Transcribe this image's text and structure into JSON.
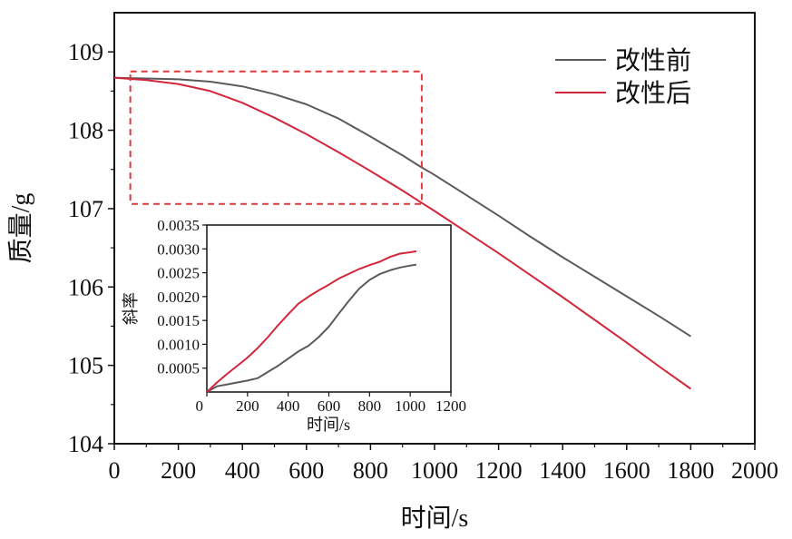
{
  "chart_data": [
    {
      "type": "line",
      "xlabel": "时间/s",
      "ylabel": "质量/g",
      "xlim": [
        0,
        2000
      ],
      "ylim": [
        104,
        109.5
      ],
      "xticks": [
        "0",
        "200",
        "400",
        "600",
        "800",
        "1000",
        "1200",
        "1400",
        "1600",
        "1800",
        "2000"
      ],
      "yticks": [
        "104",
        "105",
        "106",
        "107",
        "108",
        "109"
      ],
      "grid": false,
      "legend_position": "top-right",
      "highlight_box": {
        "x": [
          50,
          960
        ],
        "y": [
          107.06,
          108.75
        ],
        "style": "dashed",
        "color": "#e0393b"
      },
      "series": [
        {
          "name": "改性前",
          "color": "#5a5a5a",
          "x": [
            0,
            100,
            200,
            300,
            400,
            500,
            600,
            700,
            800,
            900,
            950,
            1000,
            1100,
            1200,
            1300,
            1400,
            1500,
            1600,
            1700,
            1800
          ],
          "y": [
            108.67,
            108.66,
            108.65,
            108.62,
            108.56,
            108.46,
            108.33,
            108.15,
            107.92,
            107.68,
            107.55,
            107.43,
            107.17,
            106.91,
            106.64,
            106.38,
            106.13,
            105.88,
            105.63,
            105.37
          ]
        },
        {
          "name": "改性后",
          "color": "#d2263a",
          "x": [
            0,
            100,
            200,
            300,
            400,
            500,
            600,
            700,
            800,
            900,
            950,
            1000,
            1100,
            1200,
            1300,
            1400,
            1500,
            1600,
            1700,
            1800
          ],
          "y": [
            108.67,
            108.64,
            108.59,
            108.5,
            108.35,
            108.16,
            107.95,
            107.72,
            107.48,
            107.23,
            107.1,
            106.97,
            106.7,
            106.43,
            106.15,
            105.87,
            105.58,
            105.29,
            104.99,
            104.7
          ]
        }
      ]
    },
    {
      "type": "line",
      "xlabel": "时间/s",
      "ylabel": "斜率",
      "xlim": [
        0,
        1200
      ],
      "ylim": [
        0,
        0.0035
      ],
      "xticks": [
        "0",
        "200",
        "400",
        "600",
        "800",
        "1000",
        "1200"
      ],
      "yticks": [
        "0.0005",
        "0.0010",
        "0.0015",
        "0.0020",
        "0.0025",
        "0.0030",
        "0.0035"
      ],
      "grid": false,
      "series": [
        {
          "name": "改性前",
          "color": "#5a5a5a",
          "x": [
            0,
            50,
            100,
            150,
            200,
            250,
            300,
            350,
            400,
            450,
            500,
            550,
            600,
            650,
            700,
            750,
            800,
            850,
            900,
            950,
            1000,
            1030
          ],
          "y": [
            0,
            0.00012,
            0.00016,
            0.0002,
            0.00024,
            0.00029,
            0.00042,
            0.00055,
            0.0007,
            0.00085,
            0.00097,
            0.00115,
            0.00137,
            0.00165,
            0.00192,
            0.00217,
            0.00235,
            0.00247,
            0.00255,
            0.00261,
            0.00265,
            0.00267
          ]
        },
        {
          "name": "改性后",
          "color": "#d2263a",
          "x": [
            0,
            50,
            100,
            150,
            200,
            250,
            300,
            350,
            400,
            450,
            500,
            550,
            600,
            650,
            700,
            750,
            800,
            850,
            900,
            950,
            1000,
            1030
          ],
          "y": [
            0,
            0.0002,
            0.00038,
            0.00055,
            0.00072,
            0.00092,
            0.00115,
            0.0014,
            0.00163,
            0.00185,
            0.002,
            0.00213,
            0.00225,
            0.00238,
            0.00248,
            0.00258,
            0.00266,
            0.00273,
            0.00283,
            0.0029,
            0.00293,
            0.00295
          ]
        }
      ]
    }
  ]
}
